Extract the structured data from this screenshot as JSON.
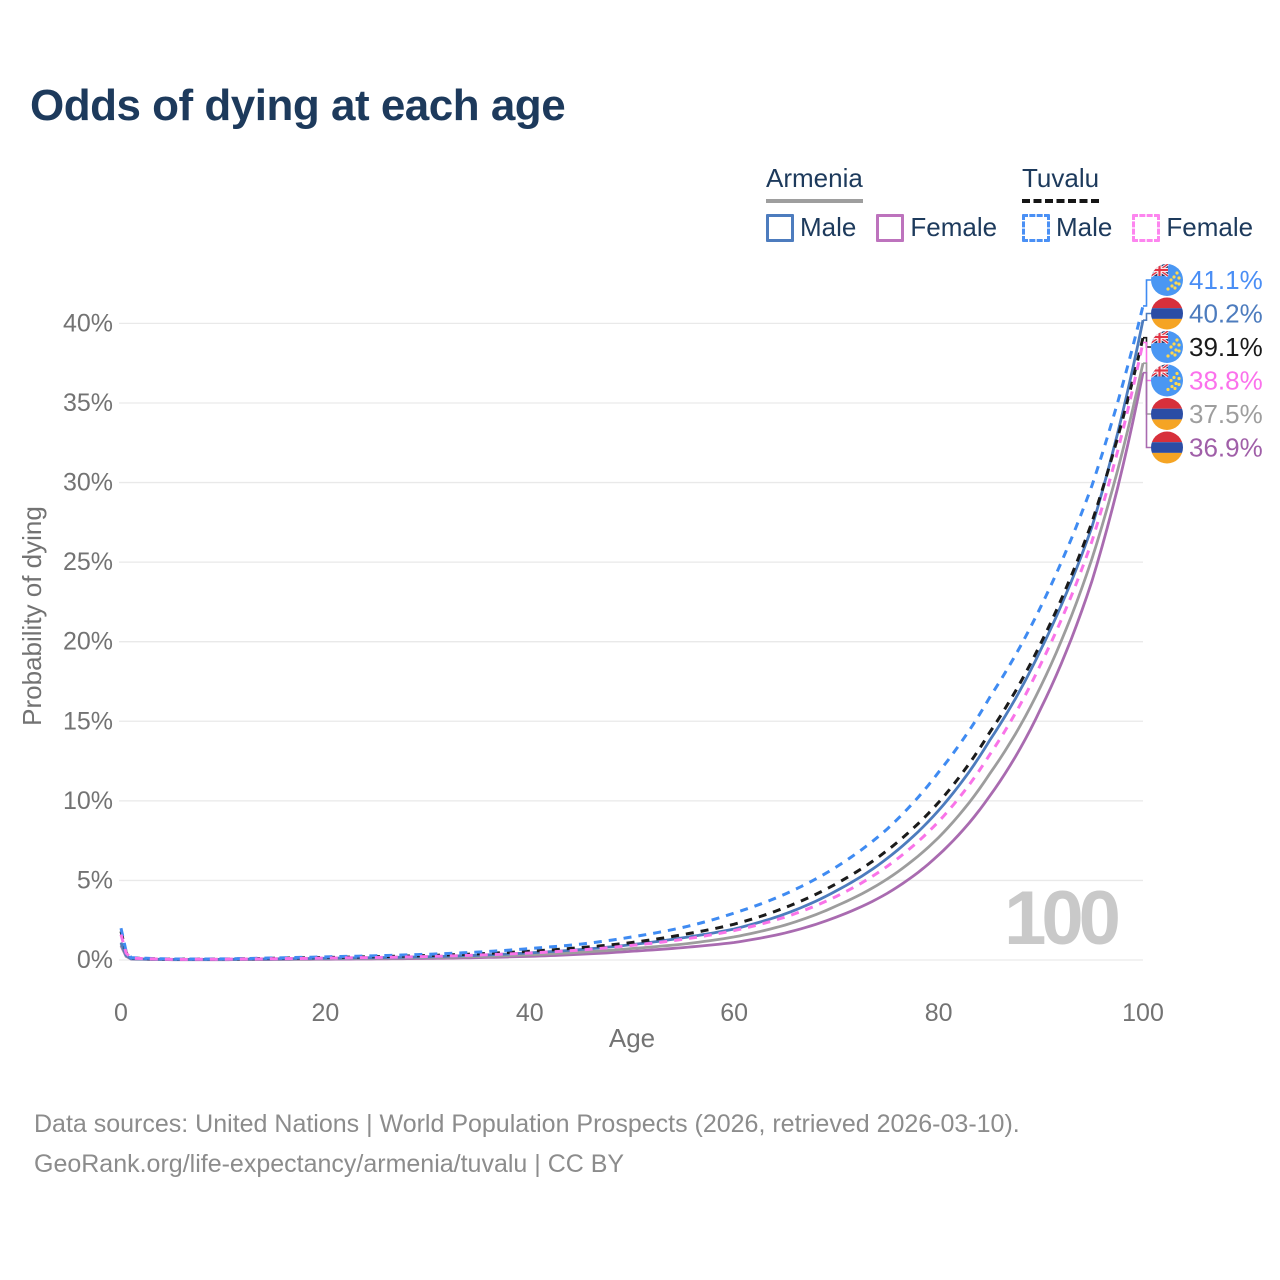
{
  "title": "Odds of dying at each age",
  "watermark_age": "100",
  "colors": {
    "title_text": "#1d3a5c",
    "legend_text": "#1d3a5c",
    "axis_text": "#737373",
    "gridline": "#e9e9e9",
    "watermark": "#c9c9c9",
    "footer_text": "#8c8c8c"
  },
  "legend": {
    "groups": [
      {
        "name": "Armenia",
        "rule_style": "solid",
        "rule_color": "#9e9e9e",
        "items": [
          {
            "label": "Male",
            "color": "#4d7cbe",
            "dashed": false
          },
          {
            "label": "Female",
            "color": "#bd73bd",
            "dashed": false
          }
        ]
      },
      {
        "name": "Tuvalu",
        "rule_style": "dashed",
        "rule_color": "#161616",
        "items": [
          {
            "label": "Male",
            "color": "#4a90f5",
            "dashed": true
          },
          {
            "label": "Female",
            "color": "#fd85ef",
            "dashed": true
          }
        ]
      }
    ]
  },
  "chart_data": {
    "type": "line",
    "xlabel": "Age",
    "ylabel": "Probability of dying",
    "xlim": [
      0,
      100
    ],
    "ylim": [
      0,
      43
    ],
    "grid": "horizontal",
    "xtick_values": [
      0,
      20,
      40,
      60,
      80,
      100
    ],
    "xtick_labels": [
      "0",
      "20",
      "40",
      "60",
      "80",
      "100"
    ],
    "ytick_values": [
      0,
      5,
      10,
      15,
      20,
      25,
      30,
      35,
      40
    ],
    "ytick_labels": [
      "0%",
      "5%",
      "10%",
      "15%",
      "20%",
      "25%",
      "30%",
      "35%",
      "40%"
    ],
    "ages": [
      0,
      1,
      5,
      10,
      15,
      20,
      25,
      30,
      35,
      40,
      45,
      50,
      55,
      60,
      65,
      70,
      75,
      80,
      85,
      90,
      95,
      100
    ],
    "series": [
      {
        "id": "tuvalu-male",
        "country": "Tuvalu",
        "sex": "Male",
        "color": "#3f8bf2",
        "label_color": "#4a8ef5",
        "dashed": true,
        "end_label": "41.1%",
        "end_value": 41.1,
        "values": [
          2.0,
          0.15,
          0.06,
          0.07,
          0.13,
          0.2,
          0.27,
          0.36,
          0.5,
          0.72,
          1.0,
          1.45,
          2.05,
          2.95,
          4.15,
          5.85,
          8.25,
          11.8,
          16.5,
          22.2,
          29.8,
          41.1
        ]
      },
      {
        "id": "armenia-male",
        "country": "Armenia",
        "sex": "Male",
        "color": "#4d7cbe",
        "label_color": "#4d7cbe",
        "dashed": false,
        "end_label": "40.2%",
        "end_value": 40.2,
        "values": [
          1.1,
          0.08,
          0.03,
          0.04,
          0.07,
          0.11,
          0.15,
          0.2,
          0.3,
          0.45,
          0.66,
          0.97,
          1.4,
          1.95,
          2.9,
          4.35,
          6.4,
          9.4,
          13.8,
          19.5,
          27.2,
          40.2
        ]
      },
      {
        "id": "tuvalu-both",
        "country": "Tuvalu",
        "sex": "Both sexes",
        "color": "#1b1b1b",
        "label_color": "#1a1a1a",
        "dashed": true,
        "end_label": "39.1%",
        "end_value": 39.1,
        "values": [
          1.8,
          0.13,
          0.05,
          0.06,
          0.11,
          0.16,
          0.21,
          0.28,
          0.39,
          0.55,
          0.78,
          1.1,
          1.6,
          2.25,
          3.3,
          4.8,
          6.9,
          9.9,
          14.3,
          19.9,
          27.5,
          39.1
        ]
      },
      {
        "id": "tuvalu-female",
        "country": "Tuvalu",
        "sex": "Female",
        "color": "#f973e8",
        "label_color": "#fb71ec",
        "dashed": true,
        "end_label": "38.8%",
        "end_value": 38.8,
        "values": [
          1.6,
          0.12,
          0.04,
          0.05,
          0.08,
          0.12,
          0.16,
          0.22,
          0.31,
          0.44,
          0.63,
          0.92,
          1.3,
          1.85,
          2.7,
          4.0,
          5.9,
          8.7,
          12.9,
          18.6,
          26.3,
          38.8
        ]
      },
      {
        "id": "armenia-both",
        "country": "Armenia",
        "sex": "Both sexes",
        "color": "#9d9d9d",
        "label_color": "#9e9e9e",
        "dashed": false,
        "end_label": "37.5%",
        "end_value": 37.5,
        "values": [
          1.0,
          0.07,
          0.03,
          0.03,
          0.05,
          0.08,
          0.11,
          0.15,
          0.22,
          0.33,
          0.49,
          0.72,
          1.0,
          1.45,
          2.2,
          3.4,
          5.1,
          7.7,
          11.7,
          17.2,
          25.2,
          37.5
        ]
      },
      {
        "id": "armenia-female",
        "country": "Armenia",
        "sex": "Female",
        "color": "#a96bb0",
        "label_color": "#a05fa8",
        "dashed": false,
        "end_label": "36.9%",
        "end_value": 36.9,
        "values": [
          0.9,
          0.06,
          0.02,
          0.02,
          0.03,
          0.05,
          0.07,
          0.1,
          0.15,
          0.23,
          0.36,
          0.55,
          0.78,
          1.1,
          1.7,
          2.7,
          4.2,
          6.6,
          10.3,
          15.8,
          23.8,
          36.9
        ]
      }
    ],
    "flag_colors": {
      "armenia": {
        "red": "#d7303b",
        "blue": "#2b4da5",
        "orange": "#f5a424"
      },
      "tuvalu": {
        "field": "#4a97f3",
        "canton_navy": "#2a3c6b",
        "canton_red": "#e23444",
        "star": "#ffd84d"
      }
    }
  },
  "footer": {
    "line1": "Data sources: United Nations | World Population Prospects (2026, retrieved 2026-03-10).",
    "line2": "GeoRank.org/life-expectancy/armenia/tuvalu | CC BY"
  }
}
